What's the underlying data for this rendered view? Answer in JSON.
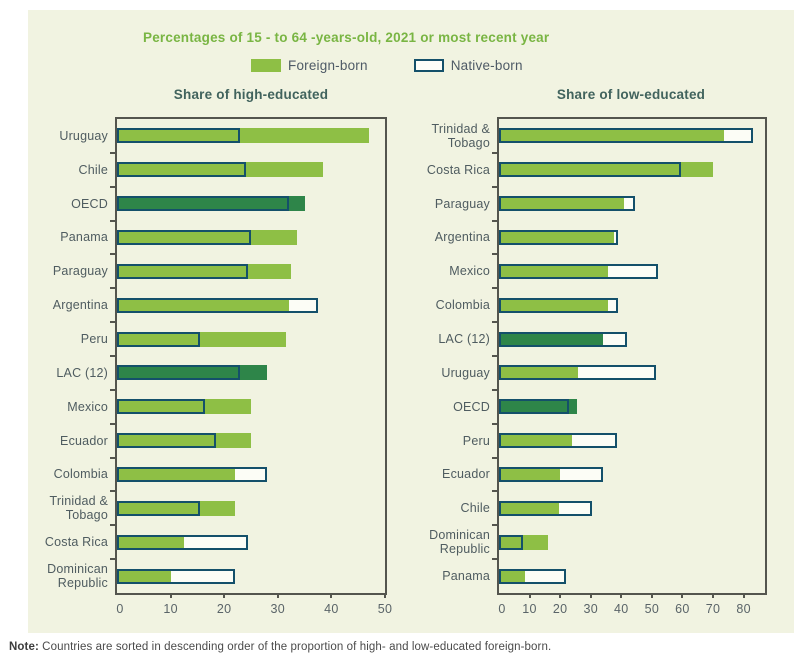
{
  "title": "Percentages of 15 - to 64 -years-old, 2021 or most recent year",
  "legend": {
    "foreign_label": "Foreign-born",
    "native_label": "Native-born"
  },
  "note": {
    "label": "Note:",
    "text": " Countries are sorted in descending order of the proportion of high- and low-educated foreign-born."
  },
  "colors": {
    "background_card": "#f1f3e1",
    "foreign_fill": "#8ebf45",
    "foreign_fill_highlight": "#2e8549",
    "native_border": "#14506a",
    "native_fill": "#fcfdf6",
    "title_green": "#79b543",
    "panel_title": "#41635d",
    "axis_line": "#54554e",
    "label_text": "#4f5c60"
  },
  "highlight_categories": [
    "OECD",
    "LAC (12)"
  ],
  "chart_data": [
    {
      "type": "bar",
      "orientation": "horizontal",
      "title": "Share of high-educated",
      "xlim": [
        0,
        50
      ],
      "xticks": [
        0,
        10,
        20,
        30,
        40,
        50
      ],
      "grid": false,
      "legend_position": "top",
      "categories": [
        "Uruguay",
        "Chile",
        "OECD",
        "Panama",
        "Paraguay",
        "Argentina",
        "Peru",
        "LAC (12)",
        "Mexico",
        "Ecuador",
        "Colombia",
        "Trinidad & Tobago",
        "Costa Rica",
        "Dominican Republic"
      ],
      "series": [
        {
          "name": "Foreign-born",
          "values": [
            47,
            38.5,
            35,
            33.5,
            32.5,
            32,
            31.5,
            28,
            25,
            25,
            22,
            22,
            12.5,
            10
          ]
        },
        {
          "name": "Native-born",
          "values": [
            23,
            24,
            32,
            25,
            24.5,
            37.5,
            15.5,
            23,
            16.5,
            18.5,
            28,
            15.5,
            24.5,
            22
          ]
        }
      ]
    },
    {
      "type": "bar",
      "orientation": "horizontal",
      "title": "Share of low-educated",
      "xlim": [
        0,
        87
      ],
      "xticks": [
        0,
        10,
        20,
        30,
        40,
        50,
        60,
        70,
        80
      ],
      "grid": false,
      "legend_position": "top",
      "categories": [
        "Trinidad & Tobago",
        "Costa Rica",
        "Paraguay",
        "Argentina",
        "Mexico",
        "Colombia",
        "LAC (12)",
        "Uruguay",
        "OECD",
        "Peru",
        "Ecuador",
        "Chile",
        "Dominican Republic",
        "Panama"
      ],
      "series": [
        {
          "name": "Foreign-born",
          "values": [
            73.5,
            70,
            41,
            37.5,
            35.5,
            35.5,
            34,
            26,
            25.5,
            24,
            20,
            19.5,
            16,
            8.5
          ]
        },
        {
          "name": "Native-born",
          "values": [
            83,
            59.5,
            44.5,
            39,
            52,
            39,
            42,
            51.5,
            23,
            38.5,
            34,
            30.5,
            8,
            22
          ]
        }
      ]
    }
  ]
}
